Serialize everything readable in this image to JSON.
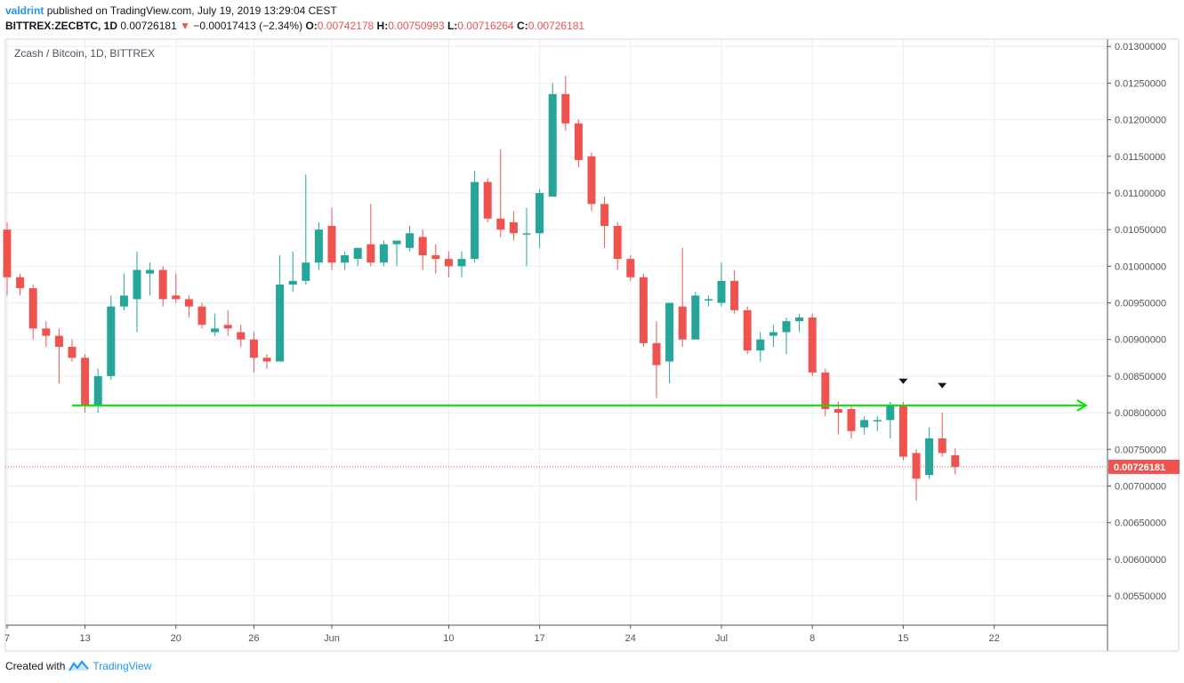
{
  "header": {
    "user": "valdrint",
    "published": "published on TradingView.com, July 19, 2019 13:29:04 CEST",
    "symbol": "BITTREX:ZECBTC, 1D",
    "last": "0.00726181",
    "change_arrow": "▼",
    "change": "−0.00017413 (−2.34%)",
    "o_label": "O:",
    "o": "0.00742178",
    "h_label": "H:",
    "h": "0.00750993",
    "l_label": "L:",
    "l": "0.00716264",
    "c_label": "C:",
    "c": "0.00726181"
  },
  "footer": {
    "created": "Created with",
    "brand": "TradingView"
  },
  "colors": {
    "up": "#26a69a",
    "down": "#ef5350",
    "support": "#00e600",
    "grid": "#e6eef5",
    "price_tag": "#ef5350",
    "brand": "#2196f3"
  },
  "chart_data": {
    "type": "candlestick",
    "title": "Zcash / Bitcoin, 1D, BITTREX",
    "ylim": [
      0.0051,
      0.0131
    ],
    "y_ticks": [
      "0.01300000",
      "0.01250000",
      "0.01200000",
      "0.01150000",
      "0.01100000",
      "0.01050000",
      "0.01000000",
      "0.00950000",
      "0.00900000",
      "0.00850000",
      "0.00800000",
      "0.00750000",
      "0.00700000",
      "0.00650000",
      "0.00600000",
      "0.00550000"
    ],
    "x_ticks": [
      {
        "label": "7",
        "day": 0
      },
      {
        "label": "13",
        "day": 6
      },
      {
        "label": "20",
        "day": 13
      },
      {
        "label": "26",
        "day": 19
      },
      {
        "label": "Jun",
        "day": 25
      },
      {
        "label": "10",
        "day": 34
      },
      {
        "label": "17",
        "day": 41
      },
      {
        "label": "24",
        "day": 48
      },
      {
        "label": "Jul",
        "day": 55
      },
      {
        "label": "8",
        "day": 62
      },
      {
        "label": "15",
        "day": 69
      },
      {
        "label": "22",
        "day": 76
      }
    ],
    "current_price": 0.00726181,
    "current_price_label": "0.00726181",
    "support_level": 0.0081,
    "support_start_day": 5,
    "support_end_day": 83,
    "markers": [
      {
        "day": 69,
        "y": 0.00843
      },
      {
        "day": 72,
        "y": 0.00837
      }
    ],
    "candles": [
      [
        0,
        0.0105,
        0.0106,
        0.0096,
        0.00985
      ],
      [
        1,
        0.00985,
        0.0099,
        0.0096,
        0.0097
      ],
      [
        2,
        0.0097,
        0.00975,
        0.009,
        0.00915
      ],
      [
        3,
        0.00915,
        0.00925,
        0.0089,
        0.00905
      ],
      [
        4,
        0.00905,
        0.00915,
        0.0084,
        0.0089
      ],
      [
        5,
        0.0089,
        0.009,
        0.0087,
        0.00875
      ],
      [
        6,
        0.00875,
        0.0088,
        0.008,
        0.0081
      ],
      [
        7,
        0.0081,
        0.0086,
        0.008,
        0.0085
      ],
      [
        8,
        0.0085,
        0.0096,
        0.00845,
        0.00945
      ],
      [
        9,
        0.00945,
        0.0099,
        0.0094,
        0.0096
      ],
      [
        10,
        0.00955,
        0.0102,
        0.0091,
        0.00995
      ],
      [
        11,
        0.0099,
        0.01005,
        0.0096,
        0.00995
      ],
      [
        12,
        0.00995,
        0.01,
        0.00945,
        0.00955
      ],
      [
        13,
        0.0096,
        0.0099,
        0.0095,
        0.00955
      ],
      [
        14,
        0.00955,
        0.0096,
        0.0093,
        0.00945
      ],
      [
        15,
        0.00945,
        0.0095,
        0.00915,
        0.0092
      ],
      [
        16,
        0.0091,
        0.00935,
        0.00905,
        0.00915
      ],
      [
        17,
        0.0092,
        0.0094,
        0.00905,
        0.00915
      ],
      [
        18,
        0.0091,
        0.0092,
        0.0089,
        0.009
      ],
      [
        19,
        0.009,
        0.0091,
        0.00855,
        0.00875
      ],
      [
        20,
        0.00875,
        0.0088,
        0.0086,
        0.0087
      ],
      [
        21,
        0.0087,
        0.01015,
        0.0087,
        0.00975
      ],
      [
        22,
        0.00975,
        0.0102,
        0.00965,
        0.0098
      ],
      [
        23,
        0.0098,
        0.01125,
        0.00975,
        0.01005
      ],
      [
        24,
        0.01005,
        0.0106,
        0.00995,
        0.0105
      ],
      [
        25,
        0.01055,
        0.0108,
        0.00995,
        0.01005
      ],
      [
        26,
        0.01005,
        0.0102,
        0.00995,
        0.01015
      ],
      [
        27,
        0.0101,
        0.01025,
        0.01,
        0.01025
      ],
      [
        28,
        0.0103,
        0.01085,
        0.01,
        0.01005
      ],
      [
        29,
        0.01005,
        0.01035,
        0.01,
        0.0103
      ],
      [
        30,
        0.0103,
        0.01035,
        0.01,
        0.01035
      ],
      [
        31,
        0.01025,
        0.01055,
        0.0102,
        0.01045
      ],
      [
        32,
        0.0104,
        0.0105,
        0.00995,
        0.01015
      ],
      [
        33,
        0.01015,
        0.0103,
        0.0099,
        0.0101
      ],
      [
        34,
        0.0101,
        0.0102,
        0.00985,
        0.01
      ],
      [
        35,
        0.01,
        0.0102,
        0.00985,
        0.0101
      ],
      [
        36,
        0.0101,
        0.0113,
        0.01005,
        0.01115
      ],
      [
        37,
        0.01115,
        0.0112,
        0.0106,
        0.01065
      ],
      [
        38,
        0.01065,
        0.0116,
        0.0104,
        0.0105
      ],
      [
        39,
        0.0106,
        0.01075,
        0.01035,
        0.01045
      ],
      [
        40,
        0.01045,
        0.0108,
        0.01,
        0.01045
      ],
      [
        41,
        0.01045,
        0.01105,
        0.01025,
        0.011
      ],
      [
        42,
        0.01095,
        0.0125,
        0.01095,
        0.01235
      ],
      [
        43,
        0.01235,
        0.0126,
        0.01185,
        0.01195
      ],
      [
        44,
        0.01195,
        0.012,
        0.01135,
        0.01145
      ],
      [
        45,
        0.0115,
        0.01155,
        0.01075,
        0.01085
      ],
      [
        46,
        0.01085,
        0.01095,
        0.01025,
        0.01055
      ],
      [
        47,
        0.01055,
        0.0106,
        0.00995,
        0.0101
      ],
      [
        48,
        0.0101,
        0.01015,
        0.0098,
        0.00985
      ],
      [
        49,
        0.00985,
        0.0099,
        0.0089,
        0.00895
      ],
      [
        50,
        0.00895,
        0.00925,
        0.0082,
        0.00865
      ],
      [
        51,
        0.0087,
        0.0095,
        0.0084,
        0.0095
      ],
      [
        52,
        0.00945,
        0.01025,
        0.0089,
        0.009
      ],
      [
        53,
        0.009,
        0.00965,
        0.009,
        0.0096
      ],
      [
        54,
        0.00955,
        0.0096,
        0.00945,
        0.00955
      ],
      [
        55,
        0.0095,
        0.01005,
        0.00945,
        0.0098
      ],
      [
        56,
        0.0098,
        0.00995,
        0.00935,
        0.0094
      ],
      [
        57,
        0.0094,
        0.00945,
        0.0088,
        0.00885
      ],
      [
        58,
        0.00885,
        0.0091,
        0.0087,
        0.009
      ],
      [
        59,
        0.00905,
        0.0092,
        0.0089,
        0.0091
      ],
      [
        60,
        0.0091,
        0.0093,
        0.0088,
        0.00925
      ],
      [
        61,
        0.00925,
        0.00935,
        0.0091,
        0.0093
      ],
      [
        62,
        0.0093,
        0.00935,
        0.0085,
        0.00855
      ],
      [
        63,
        0.00855,
        0.0086,
        0.00795,
        0.00805
      ],
      [
        64,
        0.00805,
        0.00815,
        0.0077,
        0.008
      ],
      [
        65,
        0.00805,
        0.0081,
        0.00765,
        0.00775
      ],
      [
        66,
        0.0078,
        0.00795,
        0.0077,
        0.0079
      ],
      [
        67,
        0.0079,
        0.00795,
        0.00775,
        0.0079
      ],
      [
        68,
        0.0079,
        0.00815,
        0.00765,
        0.0081
      ],
      [
        69,
        0.0081,
        0.00815,
        0.00735,
        0.0074
      ],
      [
        70,
        0.00745,
        0.0075,
        0.0068,
        0.0071
      ],
      [
        71,
        0.00715,
        0.0078,
        0.0071,
        0.00765
      ],
      [
        72,
        0.00765,
        0.008,
        0.0074,
        0.00745
      ],
      [
        73,
        0.00742,
        0.00751,
        0.00716,
        0.00726
      ]
    ]
  }
}
